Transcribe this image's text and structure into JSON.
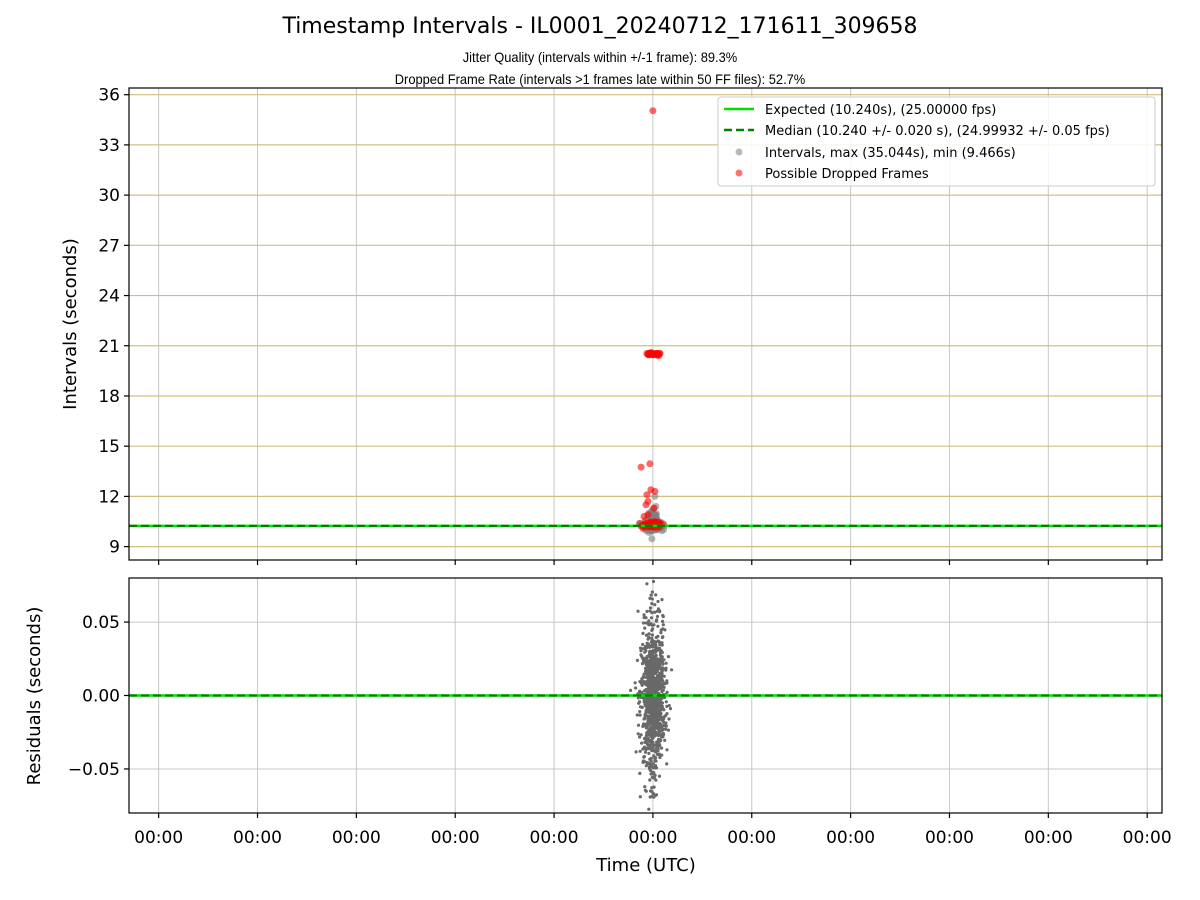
{
  "chart_data": [
    {
      "type": "scatter",
      "title": "Timestamp Intervals - IL0001_20240712_171611_309658",
      "subtitle_lines": [
        "Jitter Quality (intervals within +/-1 frame): 89.3%",
        "Dropped Frame Rate (intervals >1 frames late within 50 FF files): 52.7%"
      ],
      "xlabel": "",
      "ylabel": "Intervals (seconds)",
      "ylim": [
        8.2,
        36.4
      ],
      "yticks": [
        9,
        12,
        15,
        18,
        21,
        24,
        27,
        30,
        33,
        36
      ],
      "grid": true,
      "legend_position": "top-right",
      "legend": [
        "Expected (10.240s), (25.00000 fps)",
        "Median (10.240 +/- 0.020 s), (24.99932 +/- 0.05 fps)",
        "Intervals, max (35.044s), min (9.466s)",
        "Possible Dropped Frames"
      ],
      "expected_line": {
        "value": 10.24,
        "color": "#00e000"
      },
      "median_line": {
        "value": 10.24,
        "color": "#007f00"
      },
      "series": [
        {
          "style": "gray",
          "color": "#808080",
          "clusters": [
            {
              "x_center": 0.0,
              "x_spread": 0.04,
              "y_mean": 10.25,
              "y_spread": 0.12,
              "count": 320
            },
            {
              "x_center": 0.0,
              "x_spread": 0.035,
              "y_mean": 10.6,
              "y_spread": 0.35,
              "count": 40
            }
          ],
          "points": [
            {
              "x": -0.01,
              "y": 9.466
            },
            {
              "x": 0.02,
              "y": 12.0
            },
            {
              "x": 0.03,
              "y": 11.4
            },
            {
              "x": -0.04,
              "y": 11.0
            }
          ]
        },
        {
          "style": "red",
          "color": "#ff0000",
          "clusters": [
            {
              "x_center": 0.0,
              "x_spread": 0.045,
              "y_mean": 20.5,
              "y_spread": 0.03,
              "count": 45
            },
            {
              "x_center": 0.0,
              "x_spread": 0.045,
              "y_mean": 10.3,
              "y_spread": 0.08,
              "count": 90
            }
          ],
          "points": [
            {
              "x": 0.0,
              "y": 35.044
            },
            {
              "x": 0.06,
              "y": 20.4
            },
            {
              "x": -0.12,
              "y": 13.75
            },
            {
              "x": -0.03,
              "y": 13.95
            },
            {
              "x": -0.06,
              "y": 12.1
            },
            {
              "x": -0.05,
              "y": 11.7
            },
            {
              "x": -0.07,
              "y": 11.5
            },
            {
              "x": 0.02,
              "y": 12.3
            },
            {
              "x": 0.01,
              "y": 11.3
            },
            {
              "x": -0.05,
              "y": 10.9
            },
            {
              "x": -0.09,
              "y": 10.8
            },
            {
              "x": -0.02,
              "y": 12.4
            }
          ]
        }
      ]
    },
    {
      "type": "scatter",
      "xlabel": "Time (UTC)",
      "ylabel": "Residuals (seconds)",
      "ylim": [
        -0.08,
        0.08
      ],
      "yticks": [
        -0.05,
        0.0,
        0.05
      ],
      "ytick_labels": [
        "−0.05",
        "0.00",
        "0.05"
      ],
      "grid": true,
      "xlim": [
        -5.3,
        5.15
      ],
      "xticks": [
        -5,
        -4,
        -3,
        -2,
        -1,
        0,
        1,
        2,
        3,
        4,
        5
      ],
      "xtick_labels": [
        "00:00",
        "00:00",
        "00:00",
        "00:00",
        "00:00",
        "00:00",
        "00:00",
        "00:00",
        "00:00",
        "00:00",
        "00:00"
      ],
      "zero_line": {
        "value": 0.0,
        "color": "#00e000",
        "dash_color": "#007f00"
      },
      "series": [
        {
          "style": "gray-small",
          "color": "#696969",
          "clusters": [
            {
              "x_center": 0.0,
              "x_spread": 0.06,
              "y_mean": 0.0,
              "y_spread": 0.022,
              "count": 900
            },
            {
              "x_center": 0.0,
              "x_spread": 0.05,
              "y_mean": 0.0,
              "y_spread": 0.045,
              "count": 160
            }
          ],
          "y_clip": [
            -0.078,
            0.078
          ]
        }
      ]
    }
  ],
  "colors": {
    "hgrid_top": "#d0c080",
    "vgrid": "#c8c8c8",
    "gray_point": "#808080",
    "red_point": "#ff0000",
    "expected": "#00e000",
    "median": "#007f00"
  }
}
